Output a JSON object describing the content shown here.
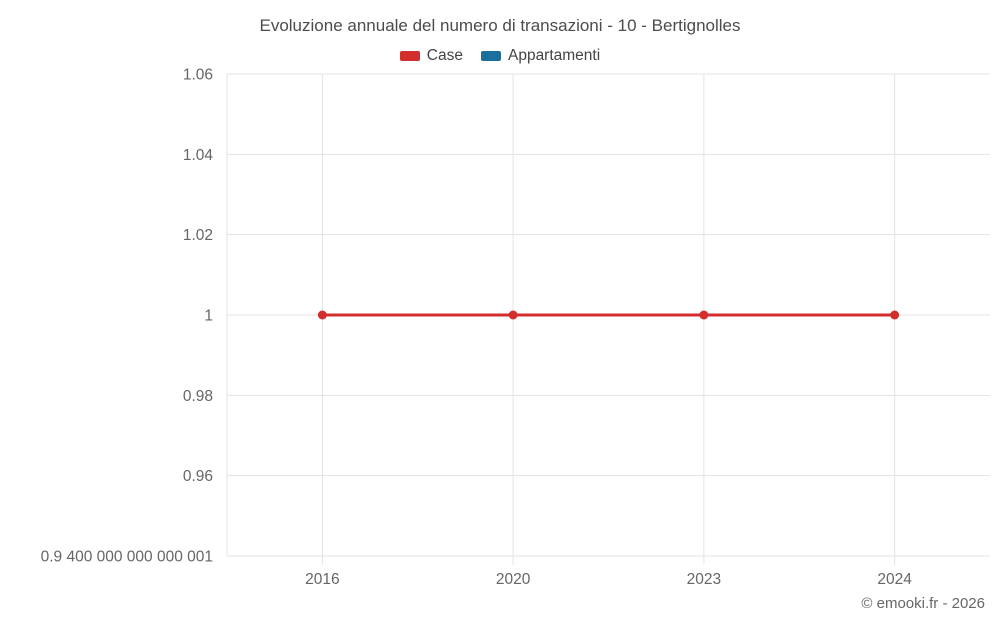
{
  "chart_data": {
    "type": "line",
    "title": "Evoluzione annuale del numero di transazioni - 10 - Bertignolles",
    "categories": [
      "2016",
      "2020",
      "2023",
      "2024"
    ],
    "series": [
      {
        "name": "Case",
        "color": "#d32e2e",
        "values": [
          1,
          1,
          1,
          1
        ]
      },
      {
        "name": "Appartamenti",
        "color": "#1c6e9c",
        "values": []
      }
    ],
    "yticks": [
      {
        "value": 0.9400000000000001,
        "label": "0.9 400 000 000 000 001"
      },
      {
        "value": 0.96,
        "label": "0.96"
      },
      {
        "value": 0.98,
        "label": "0.98"
      },
      {
        "value": 1.0,
        "label": "1"
      },
      {
        "value": 1.02,
        "label": "1.02"
      },
      {
        "value": 1.04,
        "label": "1.04"
      },
      {
        "value": 1.06,
        "label": "1.06"
      }
    ],
    "ylim": [
      0.94,
      1.06
    ],
    "grid": true,
    "legend_position": "top",
    "grid_color": "#e3e3e3",
    "tick_label_color": "#666666"
  },
  "footer": {
    "copyright": "© emooki.fr - 2026"
  }
}
